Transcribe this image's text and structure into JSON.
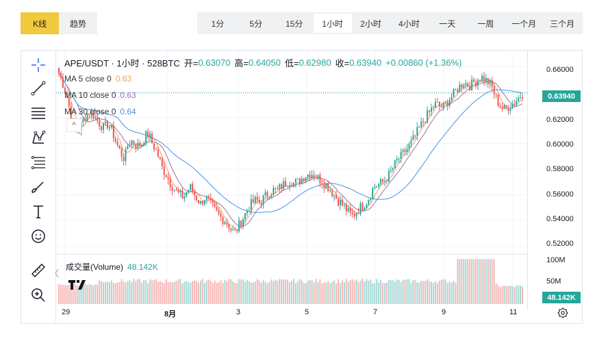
{
  "top_tabs": [
    {
      "label": "K线",
      "active": true
    },
    {
      "label": "趋势",
      "active": false
    }
  ],
  "intervals": [
    {
      "label": "1分",
      "active": false
    },
    {
      "label": "5分",
      "active": false
    },
    {
      "label": "15分",
      "active": false
    },
    {
      "label": "1小时",
      "active": true
    },
    {
      "label": "2小时",
      "active": false
    },
    {
      "label": "4小时",
      "active": false
    },
    {
      "label": "一天",
      "active": false
    },
    {
      "label": "一周",
      "active": false
    },
    {
      "label": "一个月",
      "active": false
    },
    {
      "label": "三个月",
      "active": false
    }
  ],
  "toolbar_icons": [
    "crosshair-icon",
    "trend-line-icon",
    "horizontal-lines-icon",
    "pattern-icon",
    "fib-retracement-icon",
    "brush-icon",
    "text-icon",
    "emoji-icon",
    "ruler-icon",
    "zoom-in-icon"
  ],
  "legend": {
    "symbol": "APE/USDT · 1小时 · 528BTC",
    "open_label": "开=",
    "open": "0.63070",
    "high_label": "高=",
    "high": "0.64050",
    "low_label": "低=",
    "low": "0.62980",
    "close_label": "收=",
    "close": "0.63940",
    "change": "+0.00860 (+1.36%)"
  },
  "ma": [
    {
      "label": "MA 5 close 0",
      "value": "0.63",
      "color": "#f2a355"
    },
    {
      "label": "MA 10 close 0",
      "value": "0.63",
      "color": "#9c6fb0"
    },
    {
      "label": "MA 30 close 0",
      "value": "0.64",
      "color": "#4a90e2"
    }
  ],
  "collapse_glyph": "^",
  "price_axis": [
    "0.66000",
    "0.64000",
    "0.62000",
    "0.60000",
    "0.58000",
    "0.56000",
    "0.54000",
    "0.52000"
  ],
  "last_price": "0.63940",
  "volume": {
    "label": "成交量(Volume)",
    "value": "48.142K",
    "axis": [
      "100M",
      "50M"
    ],
    "tag": "48.142K"
  },
  "time_axis": [
    "29",
    "8月",
    "3",
    "5",
    "7",
    "9",
    "11"
  ],
  "colors": {
    "up": "#26a69a",
    "down": "#ef5350",
    "accent": "#f0c93d"
  },
  "chart_data": {
    "type": "candlestick",
    "title": "APE/USDT · 1小时",
    "y_range": [
      0.515,
      0.667
    ],
    "x_ticks": [
      "29",
      "8月",
      "3",
      "5",
      "7",
      "9",
      "11"
    ],
    "close_path": [
      0.655,
      0.648,
      0.64,
      0.628,
      0.615,
      0.61,
      0.612,
      0.618,
      0.623,
      0.625,
      0.622,
      0.618,
      0.615,
      0.612,
      0.615,
      0.612,
      0.605,
      0.598,
      0.592,
      0.588,
      0.6,
      0.602,
      0.6,
      0.598,
      0.6,
      0.606,
      0.607,
      0.6,
      0.595,
      0.588,
      0.58,
      0.576,
      0.57,
      0.566,
      0.562,
      0.56,
      0.558,
      0.563,
      0.566,
      0.561,
      0.557,
      0.553,
      0.558,
      0.556,
      0.552,
      0.548,
      0.545,
      0.542,
      0.54,
      0.537,
      0.532,
      0.531,
      0.536,
      0.541,
      0.546,
      0.551,
      0.554,
      0.556,
      0.554,
      0.557,
      0.56,
      0.562,
      0.564,
      0.563,
      0.566,
      0.568,
      0.57,
      0.571,
      0.569,
      0.57,
      0.572,
      0.575,
      0.576,
      0.577,
      0.575,
      0.573,
      0.571,
      0.568,
      0.566,
      0.562,
      0.558,
      0.555,
      0.552,
      0.549,
      0.545,
      0.544,
      0.547,
      0.55,
      0.552,
      0.555,
      0.56,
      0.566,
      0.568,
      0.569,
      0.571,
      0.574,
      0.578,
      0.583,
      0.588,
      0.59,
      0.594,
      0.597,
      0.601,
      0.606,
      0.611,
      0.616,
      0.62,
      0.624,
      0.628,
      0.631,
      0.629,
      0.628,
      0.632,
      0.635,
      0.638,
      0.642,
      0.645,
      0.648,
      0.646,
      0.645,
      0.648,
      0.65,
      0.652,
      0.65,
      0.648,
      0.645,
      0.638,
      0.632,
      0.628,
      0.626,
      0.629,
      0.631,
      0.633,
      0.636,
      0.639
    ],
    "volume_level_range_note": "",
    "volume_axis": [
      "100M",
      "50M"
    ]
  }
}
